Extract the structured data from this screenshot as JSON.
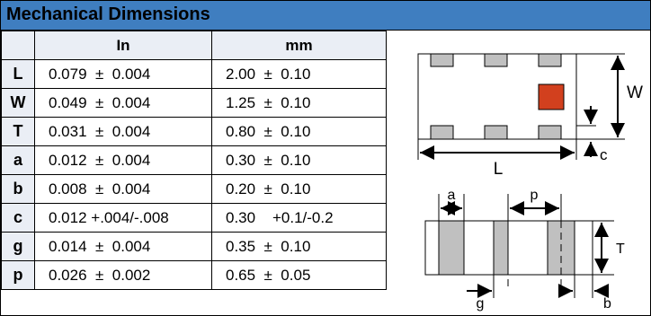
{
  "title": "Mechanical Dimensions",
  "columns": {
    "in": "In",
    "mm": "mm"
  },
  "rows": [
    {
      "sym": "L",
      "in": "0.079  ±  0.004",
      "mm": "2.00  ±  0.10"
    },
    {
      "sym": "W",
      "in": "0.049  ±  0.004",
      "mm": "1.25  ±  0.10"
    },
    {
      "sym": "T",
      "in": "0.031  ±  0.004",
      "mm": "0.80  ±  0.10"
    },
    {
      "sym": "a",
      "in": "0.012  ±  0.004",
      "mm": "0.30  ±  0.10"
    },
    {
      "sym": "b",
      "in": "0.008  ±  0.004",
      "mm": "0.20  ±  0.10"
    },
    {
      "sym": "c",
      "in": "0.012 +.004/-.008",
      "mm": "0.30    +0.1/-0.2"
    },
    {
      "sym": "g",
      "in": "0.014  ±  0.004",
      "mm": "0.35  ±  0.10"
    },
    {
      "sym": "p",
      "in": "0.026  ±  0.002",
      "mm": "0.65  ±  0.05"
    }
  ],
  "diagram": {
    "labels": {
      "W": "W",
      "L": "L",
      "c": "c",
      "a": "a",
      "p": "p",
      "T": "T",
      "g": "g",
      "b": "b"
    },
    "colors": {
      "pad": "#c0c0c0",
      "marker": "#d2401e"
    }
  }
}
